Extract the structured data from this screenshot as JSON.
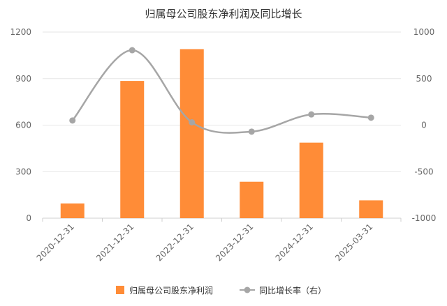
{
  "chart_data": {
    "type": "bar",
    "title": "归属母公司股东净利润及同比增长",
    "categories": [
      "2020-12-31",
      "2021-12-31",
      "2022-12-31",
      "2023-12-31",
      "2024-12-31",
      "2025-03-31"
    ],
    "series": [
      {
        "name": "归属母公司股东净利润",
        "type": "bar",
        "axis": "left",
        "color": "#FF8C37",
        "values": [
          95,
          885,
          1090,
          235,
          487,
          115
        ]
      },
      {
        "name": "同比增长率（右）",
        "type": "line",
        "axis": "right",
        "color": "#A6A6A6",
        "values": [
          50,
          805,
          30,
          -70,
          115,
          80
        ]
      }
    ],
    "y_left": {
      "min": 0,
      "max": 1200,
      "ticks": [
        "0",
        "300",
        "600",
        "900",
        "1200"
      ]
    },
    "y_right": {
      "min": -1000,
      "max": 1000,
      "ticks": [
        "-1000",
        "-500",
        "0",
        "500",
        "1000"
      ]
    },
    "grid": true,
    "legend_position": "bottom"
  }
}
